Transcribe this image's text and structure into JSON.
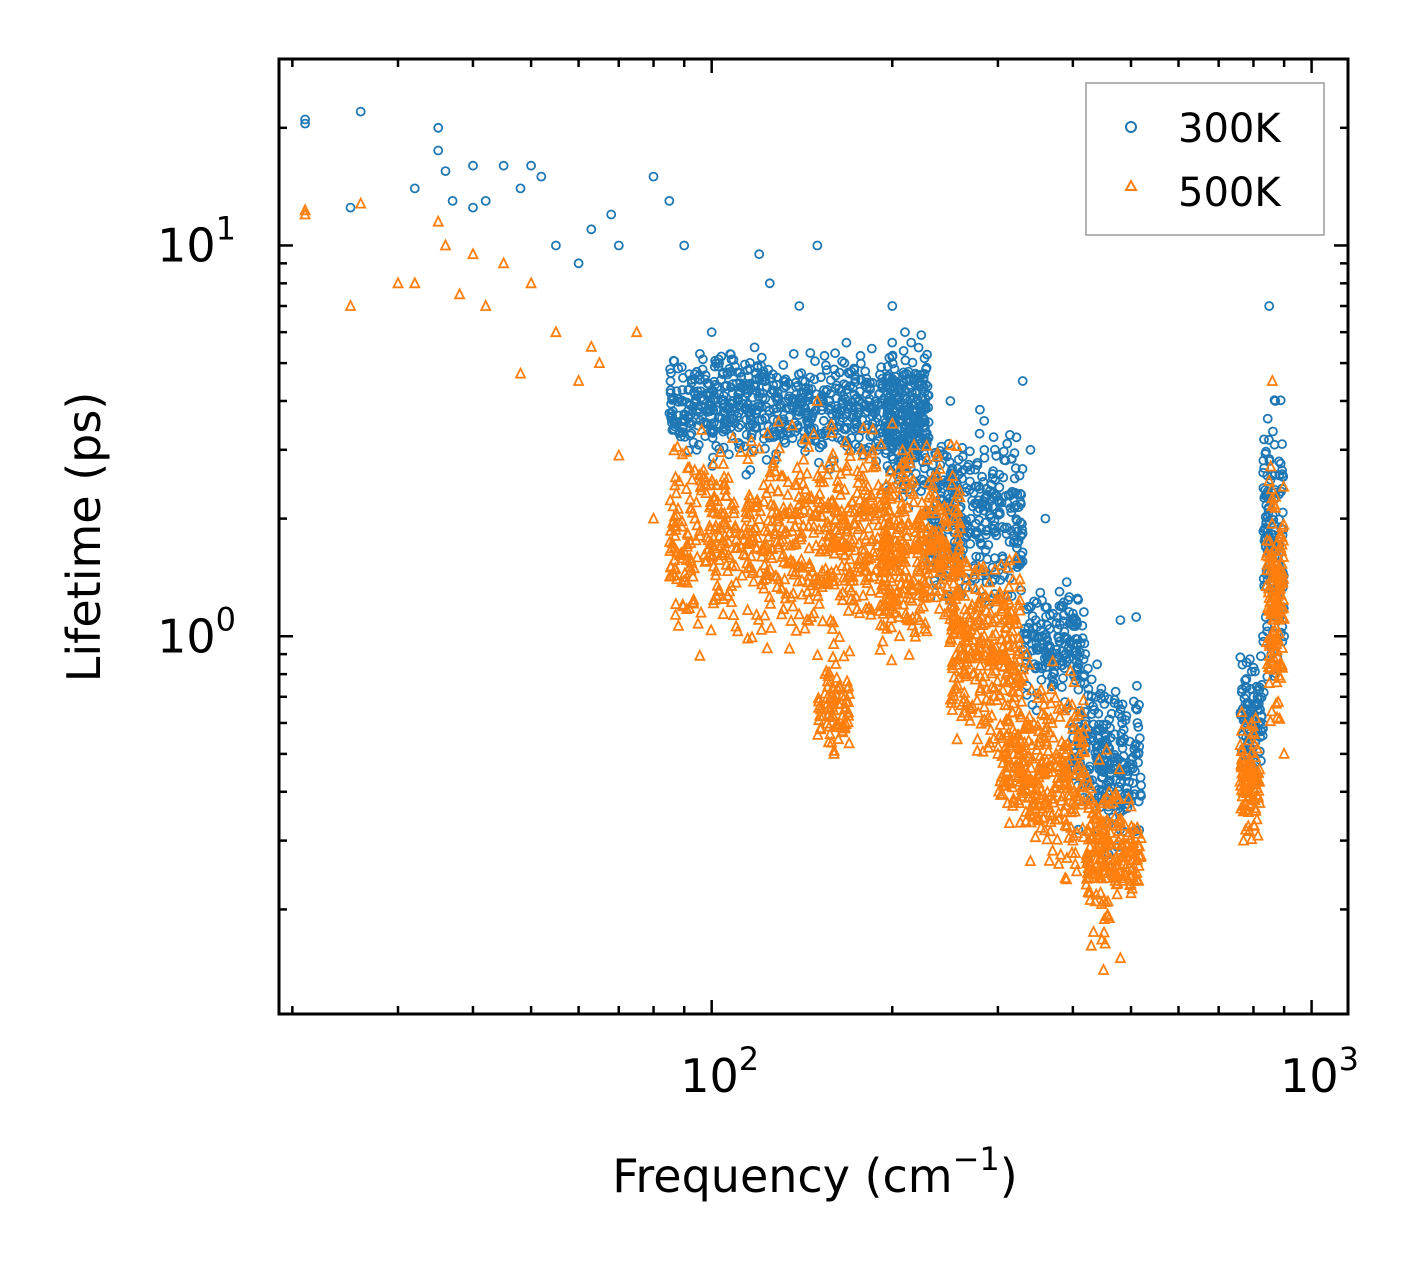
{
  "chart_data": {
    "type": "scatter",
    "xlabel": "Frequency (cm",
    "xlabel_sup": "−1",
    "xlabel_close": ")",
    "ylabel": "Lifetime (ps)",
    "xscale": "log",
    "yscale": "log",
    "xlim": [
      19,
      1150
    ],
    "ylim": [
      0.108,
      30
    ],
    "x_ticks": [
      {
        "value": 100,
        "base": "10",
        "exp": "2"
      },
      {
        "value": 1000,
        "base": "10",
        "exp": "3"
      }
    ],
    "y_ticks": [
      {
        "value": 1,
        "base": "10",
        "exp": "0"
      },
      {
        "value": 10,
        "base": "10",
        "exp": "1"
      }
    ],
    "legend_position": "top-right",
    "series": [
      {
        "name": "300K",
        "marker": "circle",
        "color": "#1f77b4",
        "anchors": [
          [
            21,
            20.5
          ],
          [
            21,
            21
          ],
          [
            25,
            12.5
          ],
          [
            26,
            22
          ],
          [
            32,
            14
          ],
          [
            35,
            20
          ],
          [
            35,
            17.5
          ],
          [
            36,
            15.5
          ],
          [
            37,
            13
          ],
          [
            40,
            12.5
          ],
          [
            40,
            16
          ],
          [
            42,
            13
          ],
          [
            45,
            16
          ],
          [
            48,
            14
          ],
          [
            50,
            16
          ],
          [
            52,
            15
          ],
          [
            55,
            10
          ],
          [
            60,
            9
          ],
          [
            63,
            11
          ],
          [
            68,
            12
          ],
          [
            70,
            10
          ],
          [
            80,
            15
          ],
          [
            85,
            13
          ],
          [
            90,
            10
          ],
          [
            100,
            6
          ],
          [
            120,
            9.5
          ],
          [
            125,
            8
          ],
          [
            140,
            7
          ],
          [
            150,
            10
          ],
          [
            200,
            7
          ],
          [
            210,
            6
          ],
          [
            250,
            4
          ],
          [
            280,
            3.8
          ],
          [
            330,
            4.5
          ],
          [
            340,
            3
          ],
          [
            360,
            2
          ],
          [
            380,
            1.3
          ],
          [
            400,
            0.95
          ],
          [
            480,
            1.1
          ],
          [
            510,
            1.12
          ],
          [
            800,
            0.7
          ],
          [
            830,
            1
          ],
          [
            850,
            7
          ],
          [
            870,
            4
          ],
          [
            900,
            1
          ]
        ],
        "clusters": [
          {
            "x": [
              85,
              200
            ],
            "y": [
              2.5,
              6
            ],
            "n": 650
          },
          {
            "x": [
              195,
              230
            ],
            "y": [
              2.0,
              6.5
            ],
            "n": 300
          },
          {
            "x": [
              230,
              330
            ],
            "y": [
              1.0,
              4.0
            ],
            "n": 350
          },
          {
            "x": [
              330,
              420
            ],
            "y": [
              0.6,
              1.5
            ],
            "n": 180
          },
          {
            "x": [
              400,
              450
            ],
            "y": [
              0.3,
              0.9
            ],
            "n": 100
          },
          {
            "x": [
              440,
              520
            ],
            "y": [
              0.25,
              0.9
            ],
            "n": 160
          },
          {
            "x": [
              760,
              830
            ],
            "y": [
              0.4,
              1.0
            ],
            "n": 90
          },
          {
            "x": [
              830,
              900
            ],
            "y": [
              0.6,
              4.5
            ],
            "n": 150
          }
        ]
      },
      {
        "name": "500K",
        "marker": "triangle",
        "color": "#ff7f0e",
        "anchors": [
          [
            21,
            12
          ],
          [
            21,
            12.3
          ],
          [
            25,
            7
          ],
          [
            26,
            12.8
          ],
          [
            30,
            8
          ],
          [
            32,
            8
          ],
          [
            35,
            11.5
          ],
          [
            36,
            10
          ],
          [
            38,
            7.5
          ],
          [
            40,
            9.5
          ],
          [
            42,
            7
          ],
          [
            45,
            9
          ],
          [
            48,
            4.7
          ],
          [
            50,
            8
          ],
          [
            55,
            6
          ],
          [
            60,
            4.5
          ],
          [
            63,
            5.5
          ],
          [
            65,
            5
          ],
          [
            70,
            2.9
          ],
          [
            75,
            6
          ],
          [
            80,
            2
          ],
          [
            100,
            2.5
          ],
          [
            150,
            4
          ],
          [
            160,
            0.5
          ],
          [
            200,
            3.5
          ],
          [
            300,
            0.5
          ],
          [
            340,
            0.35
          ],
          [
            400,
            0.3
          ],
          [
            450,
            0.14
          ],
          [
            460,
            0.19
          ],
          [
            480,
            0.15
          ],
          [
            500,
            0.22
          ],
          [
            770,
            0.3
          ],
          [
            860,
            4.5
          ],
          [
            880,
            1.5
          ],
          [
            900,
            0.5
          ]
        ],
        "clusters": [
          {
            "x": [
              85,
              200
            ],
            "y": [
              0.8,
              4.0
            ],
            "n": 700
          },
          {
            "x": [
              150,
              170
            ],
            "y": [
              0.45,
              1.0
            ],
            "n": 80
          },
          {
            "x": [
              190,
              260
            ],
            "y": [
              0.8,
              3.5
            ],
            "n": 350
          },
          {
            "x": [
              250,
              330
            ],
            "y": [
              0.45,
              2.0
            ],
            "n": 300
          },
          {
            "x": [
              300,
              330
            ],
            "y": [
              0.3,
              0.7
            ],
            "n": 80
          },
          {
            "x": [
              330,
              420
            ],
            "y": [
              0.2,
              1.0
            ],
            "n": 250
          },
          {
            "x": [
              420,
              480
            ],
            "y": [
              0.14,
              0.6
            ],
            "n": 150
          },
          {
            "x": [
              480,
              520
            ],
            "y": [
              0.2,
              0.4
            ],
            "n": 60
          },
          {
            "x": [
              760,
              820
            ],
            "y": [
              0.27,
              0.7
            ],
            "n": 100
          },
          {
            "x": [
              840,
              900
            ],
            "y": [
              0.5,
              3.0
            ],
            "n": 150
          }
        ]
      }
    ]
  }
}
